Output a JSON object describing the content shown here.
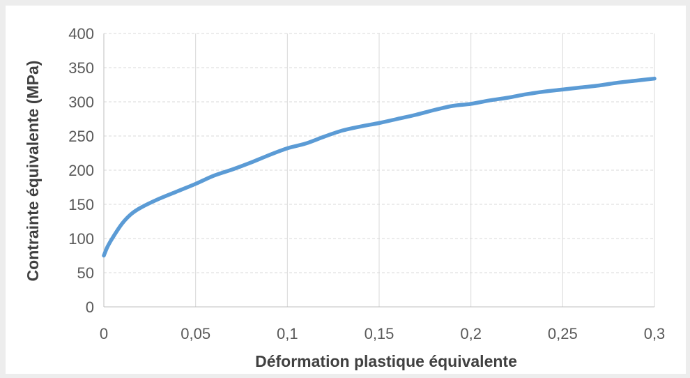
{
  "chart_data": {
    "type": "line",
    "title": "",
    "xlabel": "Déformation plastique équivalente",
    "ylabel": "Contrainte équivalente (MPa)",
    "xlim": [
      0,
      0.3
    ],
    "ylim": [
      0,
      400
    ],
    "x_ticks": [
      0,
      0.05,
      0.1,
      0.15,
      0.2,
      0.25,
      0.3
    ],
    "x_tick_labels": [
      "0",
      "0,05",
      "0,1",
      "0,15",
      "0,2",
      "0,25",
      "0,3"
    ],
    "y_ticks": [
      0,
      50,
      100,
      150,
      200,
      250,
      300,
      350,
      400
    ],
    "y_tick_labels": [
      "0",
      "50",
      "100",
      "150",
      "200",
      "250",
      "300",
      "350",
      "400"
    ],
    "grid": {
      "vertical": true,
      "horizontal_dashed": true
    },
    "legend": "none",
    "colors": {
      "series": "#5b9bd5",
      "grid": "#d9d9d9",
      "tick_text": "#595959",
      "axis_title": "#404040",
      "axis_line": "#bfbfbf"
    },
    "series": [
      {
        "x": [
          0,
          0.002,
          0.005,
          0.01,
          0.015,
          0.02,
          0.03,
          0.04,
          0.05,
          0.06,
          0.07,
          0.08,
          0.09,
          0.1,
          0.11,
          0.12,
          0.13,
          0.14,
          0.15,
          0.16,
          0.17,
          0.18,
          0.19,
          0.2,
          0.21,
          0.22,
          0.23,
          0.24,
          0.25,
          0.26,
          0.27,
          0.28,
          0.29,
          0.3
        ],
        "y": [
          75,
          88,
          102,
          122,
          136,
          145,
          158,
          169,
          180,
          192,
          201,
          211,
          222,
          232,
          239,
          249,
          258,
          264,
          269,
          275,
          281,
          288,
          294,
          297,
          302,
          306,
          311,
          315,
          318,
          321,
          324,
          328,
          331,
          334
        ]
      }
    ]
  }
}
